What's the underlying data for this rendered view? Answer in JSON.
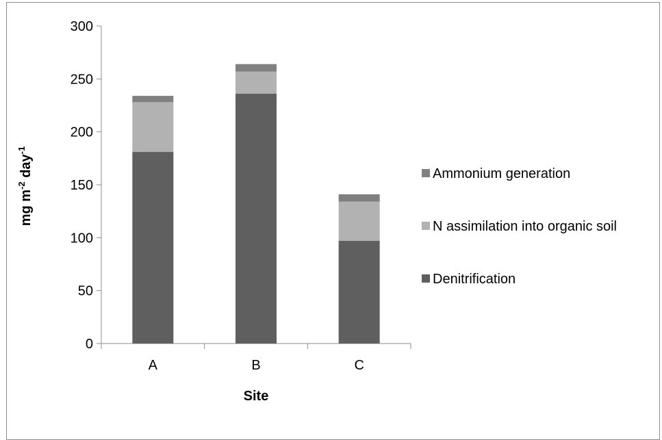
{
  "chart_data": {
    "type": "bar",
    "stacked": true,
    "categories": [
      "A",
      "B",
      "C"
    ],
    "series": [
      {
        "name": "Denitrification",
        "values": [
          181,
          236,
          97
        ],
        "color": "#5f5f5f"
      },
      {
        "name": "N assimilation into organic soil",
        "values": [
          47,
          21,
          37
        ],
        "color": "#b2b2b2"
      },
      {
        "name": "Ammonium generation",
        "values": [
          6,
          7,
          7
        ],
        "color": "#808080"
      }
    ],
    "title": "",
    "xlabel": "Site",
    "ylabel": "mg m-2 day-1",
    "ylabel_parts": {
      "base1": "mg m",
      "sup1": "-2",
      "base2": " day",
      "sup2": "-1"
    },
    "ylim": [
      0,
      300
    ],
    "yticks": [
      0,
      50,
      100,
      150,
      200,
      250,
      300
    ],
    "grid": false,
    "legend_position": "right"
  }
}
